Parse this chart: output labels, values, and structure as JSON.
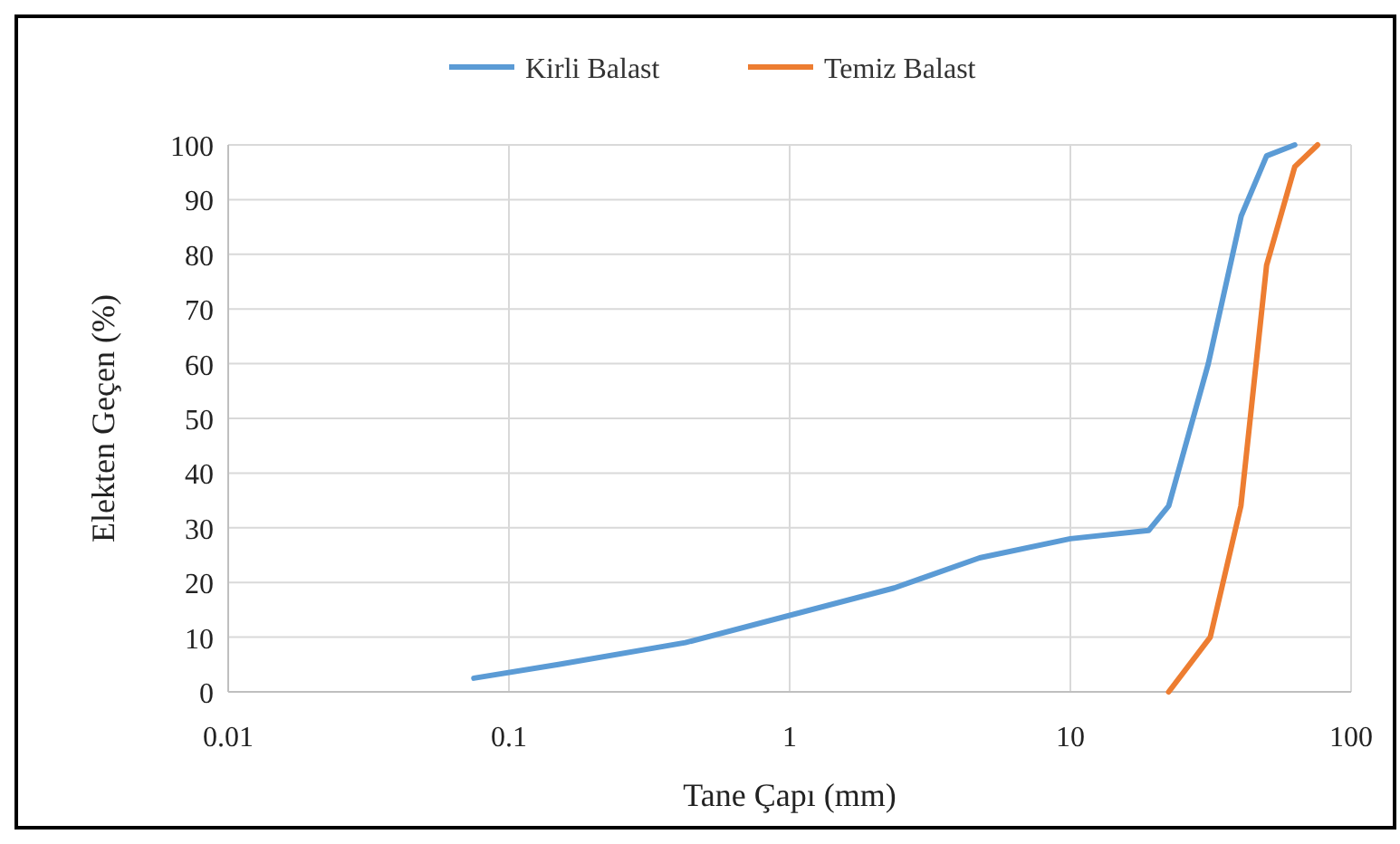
{
  "chart_data": {
    "type": "line",
    "xlabel": "Tane Çapı (mm)",
    "ylabel": "Elekten Geçen (%)",
    "log": "x",
    "xlim": [
      0.01,
      100
    ],
    "xticks": [
      0.01,
      0.1,
      1,
      10,
      100
    ],
    "ylim": [
      0,
      100
    ],
    "yticks": [
      0,
      10,
      20,
      30,
      40,
      50,
      60,
      70,
      80,
      90,
      100
    ],
    "grid": true,
    "legend": "top",
    "marker": "none",
    "line_style": "solid",
    "series": [
      {
        "name": "Kirli Balast",
        "color": "#5b9bd5",
        "x": [
          0.075,
          0.15,
          0.425,
          2.36,
          4.75,
          10,
          19,
          22.4,
          31,
          40.6,
          50,
          63
        ],
        "values": [
          2.5,
          5,
          9,
          19,
          24.5,
          28,
          29.5,
          34,
          60,
          87,
          98,
          100
        ]
      },
      {
        "name": "Temiz Balast",
        "color": "#ed7d31",
        "x": [
          22.4,
          31.5,
          40.5,
          50,
          63,
          76
        ],
        "values": [
          0,
          10,
          34,
          78,
          96,
          100
        ]
      }
    ]
  }
}
